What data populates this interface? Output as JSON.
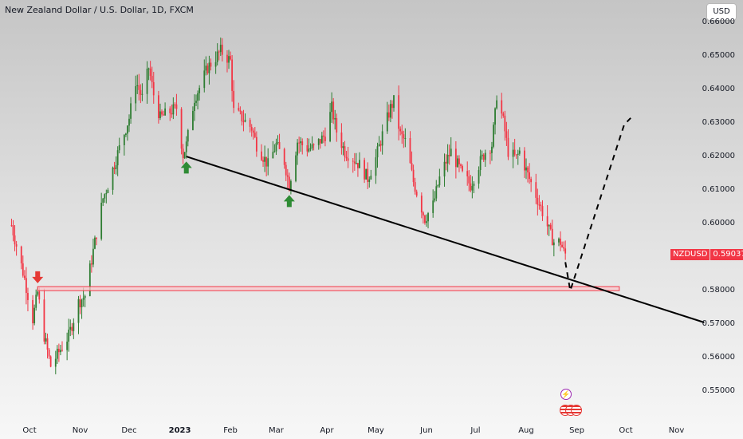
{
  "header": {
    "title": "New Zealand Dollar / U.S. Dollar, 1D, FXCM",
    "currency_button": "USD"
  },
  "price_tag": {
    "symbol": "NZDUSD",
    "value": "0.59037"
  },
  "icons": [
    "lightning-icon",
    "us-flag-icon"
  ],
  "colors": {
    "up": "#2e7d32",
    "down": "#f23645",
    "trendline": "#000000",
    "zone_fill": "#f8c9cd",
    "zone_border": "#f23645",
    "arrow_up": "#2e8b34",
    "arrow_down": "#e53935"
  },
  "chart_data": {
    "type": "candlestick",
    "title": "New Zealand Dollar / U.S. Dollar, 1D, FXCM",
    "ylim": [
      0.5435,
      0.6605
    ],
    "y_ticks": [
      "0.55000",
      "0.56000",
      "0.57000",
      "0.58000",
      "0.59000",
      "0.60000",
      "0.61000",
      "0.62000",
      "0.63000",
      "0.64000",
      "0.65000",
      "0.66000"
    ],
    "x_ticks": [
      {
        "label": "Oct",
        "date": "2022-10-01"
      },
      {
        "label": "Nov",
        "date": "2022-11-01"
      },
      {
        "label": "Dec",
        "date": "2022-12-01"
      },
      {
        "label": "2023",
        "date": "2023-01-01",
        "bold": true
      },
      {
        "label": "Feb",
        "date": "2023-02-01"
      },
      {
        "label": "Mar",
        "date": "2023-03-01"
      },
      {
        "label": "Apr",
        "date": "2023-04-01"
      },
      {
        "label": "May",
        "date": "2023-05-01"
      },
      {
        "label": "Jun",
        "date": "2023-06-01"
      },
      {
        "label": "Jul",
        "date": "2023-07-01"
      },
      {
        "label": "Aug",
        "date": "2023-08-01"
      },
      {
        "label": "Sep",
        "date": "2023-09-01"
      },
      {
        "label": "Oct",
        "date": "2023-10-01"
      },
      {
        "label": "Nov",
        "date": "2023-11-01"
      }
    ],
    "x_range": [
      "2022-09-20",
      "2023-12-05"
    ],
    "price_path": [
      [
        "2022-09-20",
        0.599
      ],
      [
        "2022-09-28",
        0.583
      ],
      [
        "2022-10-03",
        0.571
      ],
      [
        "2022-10-06",
        0.579
      ],
      [
        "2022-10-10",
        0.566
      ],
      [
        "2022-10-14",
        0.557
      ],
      [
        "2022-10-20",
        0.562
      ],
      [
        "2022-10-25",
        0.566
      ],
      [
        "2022-10-31",
        0.576
      ],
      [
        "2022-11-04",
        0.578
      ],
      [
        "2022-11-10",
        0.594
      ],
      [
        "2022-11-15",
        0.607
      ],
      [
        "2022-11-18",
        0.611
      ],
      [
        "2022-11-25",
        0.622
      ],
      [
        "2022-12-01",
        0.631
      ],
      [
        "2022-12-05",
        0.642
      ],
      [
        "2022-12-09",
        0.637
      ],
      [
        "2022-12-13",
        0.646
      ],
      [
        "2022-12-16",
        0.638
      ],
      [
        "2022-12-20",
        0.631
      ],
      [
        "2022-12-23",
        0.632
      ],
      [
        "2022-12-30",
        0.634
      ],
      [
        "2023-01-03",
        0.62
      ],
      [
        "2023-01-05",
        0.623
      ],
      [
        "2023-01-10",
        0.637
      ],
      [
        "2023-01-13",
        0.64
      ],
      [
        "2023-01-18",
        0.646
      ],
      [
        "2023-01-23",
        0.649
      ],
      [
        "2023-01-26",
        0.651
      ],
      [
        "2023-02-01",
        0.648
      ],
      [
        "2023-02-03",
        0.633
      ],
      [
        "2023-02-08",
        0.631
      ],
      [
        "2023-02-14",
        0.628
      ],
      [
        "2023-02-17",
        0.623
      ],
      [
        "2023-02-24",
        0.617
      ],
      [
        "2023-03-01",
        0.623
      ],
      [
        "2023-03-06",
        0.618
      ],
      [
        "2023-03-09",
        0.611
      ],
      [
        "2023-03-14",
        0.624
      ],
      [
        "2023-03-20",
        0.622
      ],
      [
        "2023-03-24",
        0.622
      ],
      [
        "2023-03-31",
        0.626
      ],
      [
        "2023-04-04",
        0.634
      ],
      [
        "2023-04-07",
        0.627
      ],
      [
        "2023-04-12",
        0.621
      ],
      [
        "2023-04-17",
        0.619
      ],
      [
        "2023-04-21",
        0.617
      ],
      [
        "2023-04-26",
        0.613
      ],
      [
        "2023-05-01",
        0.619
      ],
      [
        "2023-05-05",
        0.626
      ],
      [
        "2023-05-10",
        0.634
      ],
      [
        "2023-05-12",
        0.636
      ],
      [
        "2023-05-16",
        0.626
      ],
      [
        "2023-05-19",
        0.624
      ],
      [
        "2023-05-24",
        0.612
      ],
      [
        "2023-05-31",
        0.601
      ],
      [
        "2023-06-05",
        0.605
      ],
      [
        "2023-06-09",
        0.613
      ],
      [
        "2023-06-13",
        0.618
      ],
      [
        "2023-06-16",
        0.621
      ],
      [
        "2023-06-20",
        0.617
      ],
      [
        "2023-06-23",
        0.614
      ],
      [
        "2023-06-28",
        0.611
      ],
      [
        "2023-07-03",
        0.617
      ],
      [
        "2023-07-07",
        0.621
      ],
      [
        "2023-07-11",
        0.623
      ],
      [
        "2023-07-13",
        0.632
      ],
      [
        "2023-07-14",
        0.638
      ],
      [
        "2023-07-18",
        0.63
      ],
      [
        "2023-07-21",
        0.621
      ],
      [
        "2023-07-26",
        0.619
      ],
      [
        "2023-07-28",
        0.621
      ],
      [
        "2023-08-02",
        0.614
      ],
      [
        "2023-08-07",
        0.608
      ],
      [
        "2023-08-11",
        0.603
      ],
      [
        "2023-08-16",
        0.596
      ],
      [
        "2023-08-18",
        0.594
      ],
      [
        "2023-08-22",
        0.594
      ],
      [
        "2023-08-24",
        0.591
      ],
      [
        "2023-08-25",
        0.5904
      ]
    ],
    "annotations": {
      "trendline": [
        [
          "2023-01-05",
          0.6195
        ],
        [
          "2023-11-18",
          0.57
        ]
      ],
      "support_zone": {
        "from": "2022-10-06",
        "to": "2023-09-27",
        "y_top": 0.5807,
        "y_bottom": 0.5795
      },
      "projection": [
        [
          "2023-08-25",
          0.588
        ],
        [
          "2023-08-28",
          0.5795
        ],
        [
          "2023-09-30",
          0.629
        ],
        [
          "2023-10-04",
          0.631
        ]
      ],
      "markers": [
        {
          "type": "down-arrow",
          "date": "2022-10-06",
          "price": 0.5817
        },
        {
          "type": "up-arrow",
          "date": "2023-01-05",
          "price": 0.618
        },
        {
          "type": "up-arrow",
          "date": "2023-03-09",
          "price": 0.608
        }
      ]
    }
  }
}
